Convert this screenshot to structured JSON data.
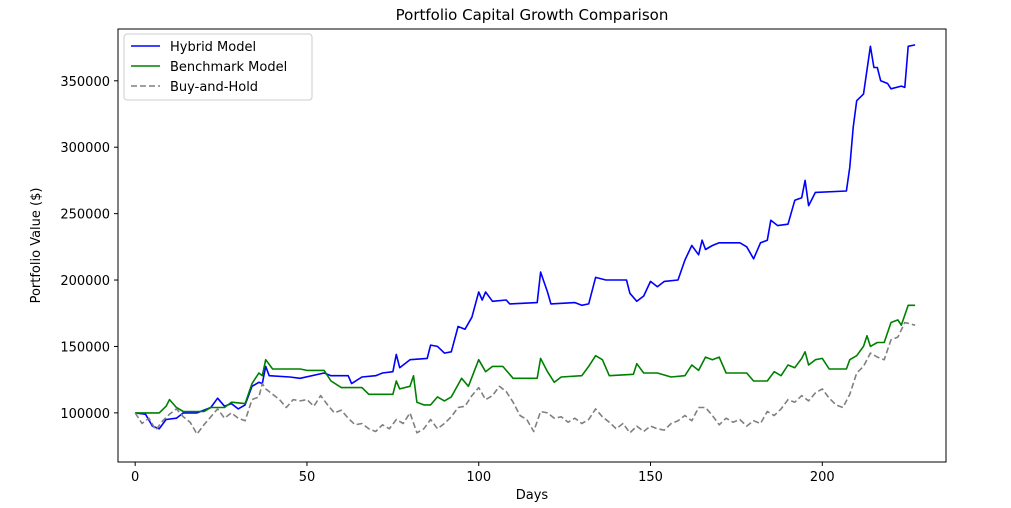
{
  "chart_data": {
    "type": "line",
    "title": "Portfolio Capital Growth Comparison",
    "xlabel": "Days",
    "ylabel": "Portfolio Value ($)",
    "xlim": [
      -5,
      236
    ],
    "ylim": [
      63000,
      389000
    ],
    "xticks": [
      0,
      50,
      100,
      150,
      200
    ],
    "yticks": [
      100000,
      150000,
      200000,
      250000,
      300000,
      350000
    ],
    "legend_position": "top-left",
    "grid": false,
    "series": [
      {
        "name": "Hybrid Model",
        "color": "#0000ff",
        "dash": "solid",
        "points": [
          [
            0,
            100000
          ],
          [
            3,
            99000
          ],
          [
            5,
            90000
          ],
          [
            7,
            88000
          ],
          [
            9,
            95000
          ],
          [
            12,
            96000
          ],
          [
            14,
            100000
          ],
          [
            18,
            100000
          ],
          [
            22,
            104000
          ],
          [
            24,
            111000
          ],
          [
            26,
            105000
          ],
          [
            28,
            107000
          ],
          [
            30,
            103000
          ],
          [
            32,
            106000
          ],
          [
            34,
            120000
          ],
          [
            36,
            123000
          ],
          [
            37,
            122000
          ],
          [
            38,
            135000
          ],
          [
            39,
            128000
          ],
          [
            45,
            127000
          ],
          [
            48,
            126000
          ],
          [
            55,
            130000
          ],
          [
            57,
            128000
          ],
          [
            62,
            128000
          ],
          [
            63,
            122000
          ],
          [
            66,
            127000
          ],
          [
            70,
            128000
          ],
          [
            72,
            130000
          ],
          [
            75,
            131000
          ],
          [
            76,
            144000
          ],
          [
            77,
            134000
          ],
          [
            80,
            140000
          ],
          [
            85,
            141000
          ],
          [
            86,
            151000
          ],
          [
            88,
            150000
          ],
          [
            90,
            145000
          ],
          [
            92,
            146000
          ],
          [
            94,
            165000
          ],
          [
            96,
            163000
          ],
          [
            98,
            172000
          ],
          [
            100,
            191000
          ],
          [
            101,
            185000
          ],
          [
            102,
            191000
          ],
          [
            104,
            184000
          ],
          [
            108,
            185000
          ],
          [
            109,
            182000
          ],
          [
            117,
            183000
          ],
          [
            118,
            206000
          ],
          [
            120,
            191000
          ],
          [
            121,
            182000
          ],
          [
            128,
            183000
          ],
          [
            130,
            181000
          ],
          [
            132,
            182000
          ],
          [
            134,
            202000
          ],
          [
            137,
            200000
          ],
          [
            143,
            200000
          ],
          [
            144,
            190000
          ],
          [
            146,
            184000
          ],
          [
            148,
            188000
          ],
          [
            150,
            199000
          ],
          [
            152,
            195000
          ],
          [
            154,
            199000
          ],
          [
            158,
            200000
          ],
          [
            160,
            215000
          ],
          [
            162,
            226000
          ],
          [
            164,
            219000
          ],
          [
            165,
            230000
          ],
          [
            166,
            223000
          ],
          [
            168,
            226000
          ],
          [
            170,
            228000
          ],
          [
            176,
            228000
          ],
          [
            178,
            225000
          ],
          [
            180,
            216000
          ],
          [
            182,
            228000
          ],
          [
            184,
            230000
          ],
          [
            185,
            245000
          ],
          [
            187,
            241000
          ],
          [
            190,
            242000
          ],
          [
            192,
            260000
          ],
          [
            194,
            262000
          ],
          [
            195,
            275000
          ],
          [
            196,
            256000
          ],
          [
            198,
            266000
          ],
          [
            207,
            267000
          ],
          [
            208,
            285000
          ],
          [
            209,
            315000
          ],
          [
            210,
            335000
          ],
          [
            212,
            340000
          ],
          [
            214,
            376000
          ],
          [
            215,
            360000
          ],
          [
            216,
            360000
          ],
          [
            217,
            350000
          ],
          [
            219,
            348000
          ],
          [
            220,
            344000
          ],
          [
            223,
            346000
          ],
          [
            224,
            345000
          ],
          [
            225,
            376000
          ],
          [
            227,
            377000
          ]
        ]
      },
      {
        "name": "Benchmark Model",
        "color": "#008000",
        "dash": "solid",
        "points": [
          [
            0,
            100000
          ],
          [
            5,
            100000
          ],
          [
            7,
            100000
          ],
          [
            9,
            105000
          ],
          [
            10,
            110000
          ],
          [
            12,
            104000
          ],
          [
            14,
            101000
          ],
          [
            20,
            101000
          ],
          [
            22,
            104000
          ],
          [
            26,
            104000
          ],
          [
            28,
            108000
          ],
          [
            32,
            107000
          ],
          [
            34,
            122000
          ],
          [
            36,
            130000
          ],
          [
            37,
            128000
          ],
          [
            38,
            140000
          ],
          [
            40,
            133000
          ],
          [
            48,
            133000
          ],
          [
            50,
            132000
          ],
          [
            55,
            132000
          ],
          [
            57,
            124000
          ],
          [
            60,
            119000
          ],
          [
            66,
            119000
          ],
          [
            68,
            114000
          ],
          [
            75,
            114000
          ],
          [
            76,
            124000
          ],
          [
            77,
            118000
          ],
          [
            80,
            120000
          ],
          [
            81,
            128000
          ],
          [
            82,
            108000
          ],
          [
            84,
            106000
          ],
          [
            86,
            106000
          ],
          [
            88,
            112000
          ],
          [
            90,
            109000
          ],
          [
            92,
            112000
          ],
          [
            95,
            126000
          ],
          [
            97,
            120000
          ],
          [
            100,
            140000
          ],
          [
            102,
            131000
          ],
          [
            104,
            135000
          ],
          [
            107,
            135000
          ],
          [
            110,
            126000
          ],
          [
            117,
            126000
          ],
          [
            118,
            141000
          ],
          [
            120,
            131000
          ],
          [
            122,
            123000
          ],
          [
            124,
            127000
          ],
          [
            130,
            128000
          ],
          [
            132,
            135000
          ],
          [
            134,
            143000
          ],
          [
            136,
            140000
          ],
          [
            138,
            128000
          ],
          [
            145,
            129000
          ],
          [
            146,
            137000
          ],
          [
            148,
            130000
          ],
          [
            152,
            130000
          ],
          [
            156,
            127000
          ],
          [
            160,
            128000
          ],
          [
            162,
            136000
          ],
          [
            164,
            132000
          ],
          [
            166,
            142000
          ],
          [
            168,
            140000
          ],
          [
            170,
            142000
          ],
          [
            172,
            130000
          ],
          [
            178,
            130000
          ],
          [
            180,
            124000
          ],
          [
            184,
            124000
          ],
          [
            186,
            131000
          ],
          [
            188,
            128000
          ],
          [
            190,
            136000
          ],
          [
            192,
            134000
          ],
          [
            194,
            141000
          ],
          [
            195,
            146000
          ],
          [
            196,
            136000
          ],
          [
            198,
            140000
          ],
          [
            200,
            141000
          ],
          [
            202,
            133000
          ],
          [
            207,
            133000
          ],
          [
            208,
            140000
          ],
          [
            210,
            143000
          ],
          [
            212,
            150000
          ],
          [
            213,
            158000
          ],
          [
            214,
            150000
          ],
          [
            216,
            153000
          ],
          [
            218,
            153000
          ],
          [
            220,
            168000
          ],
          [
            222,
            170000
          ],
          [
            223,
            166000
          ],
          [
            225,
            181000
          ],
          [
            227,
            181000
          ]
        ]
      },
      {
        "name": "Buy-and-Hold",
        "color": "#808080",
        "dash": "dashed",
        "points": [
          [
            0,
            100000
          ],
          [
            2,
            92000
          ],
          [
            4,
            96000
          ],
          [
            6,
            87000
          ],
          [
            8,
            94000
          ],
          [
            10,
            99000
          ],
          [
            12,
            103000
          ],
          [
            14,
            97000
          ],
          [
            16,
            93000
          ],
          [
            18,
            84000
          ],
          [
            20,
            91000
          ],
          [
            22,
            97000
          ],
          [
            24,
            103000
          ],
          [
            26,
            96000
          ],
          [
            28,
            100000
          ],
          [
            30,
            96000
          ],
          [
            32,
            94000
          ],
          [
            34,
            110000
          ],
          [
            36,
            112000
          ],
          [
            37,
            122000
          ],
          [
            38,
            118000
          ],
          [
            40,
            114000
          ],
          [
            42,
            110000
          ],
          [
            44,
            104000
          ],
          [
            46,
            110000
          ],
          [
            48,
            109000
          ],
          [
            50,
            110000
          ],
          [
            52,
            105000
          ],
          [
            54,
            113000
          ],
          [
            56,
            106000
          ],
          [
            58,
            100000
          ],
          [
            60,
            102000
          ],
          [
            62,
            96000
          ],
          [
            64,
            91000
          ],
          [
            66,
            92000
          ],
          [
            68,
            88000
          ],
          [
            70,
            86000
          ],
          [
            72,
            91000
          ],
          [
            74,
            88000
          ],
          [
            76,
            95000
          ],
          [
            78,
            92000
          ],
          [
            80,
            100000
          ],
          [
            82,
            85000
          ],
          [
            84,
            88000
          ],
          [
            86,
            95000
          ],
          [
            88,
            88000
          ],
          [
            90,
            92000
          ],
          [
            92,
            97000
          ],
          [
            94,
            104000
          ],
          [
            96,
            105000
          ],
          [
            98,
            113000
          ],
          [
            100,
            119000
          ],
          [
            102,
            110000
          ],
          [
            104,
            113000
          ],
          [
            106,
            120000
          ],
          [
            108,
            116000
          ],
          [
            110,
            108000
          ],
          [
            112,
            98000
          ],
          [
            114,
            95000
          ],
          [
            116,
            86000
          ],
          [
            118,
            101000
          ],
          [
            120,
            100000
          ],
          [
            122,
            96000
          ],
          [
            124,
            97000
          ],
          [
            126,
            93000
          ],
          [
            128,
            96000
          ],
          [
            130,
            92000
          ],
          [
            132,
            95000
          ],
          [
            134,
            103000
          ],
          [
            136,
            97000
          ],
          [
            138,
            93000
          ],
          [
            140,
            88000
          ],
          [
            142,
            92000
          ],
          [
            144,
            85000
          ],
          [
            146,
            90000
          ],
          [
            148,
            86000
          ],
          [
            150,
            90000
          ],
          [
            152,
            88000
          ],
          [
            154,
            87000
          ],
          [
            156,
            92000
          ],
          [
            158,
            94000
          ],
          [
            160,
            98000
          ],
          [
            162,
            94000
          ],
          [
            164,
            104000
          ],
          [
            166,
            104000
          ],
          [
            168,
            98000
          ],
          [
            170,
            91000
          ],
          [
            172,
            96000
          ],
          [
            174,
            93000
          ],
          [
            176,
            95000
          ],
          [
            178,
            90000
          ],
          [
            180,
            94000
          ],
          [
            182,
            92000
          ],
          [
            184,
            101000
          ],
          [
            186,
            98000
          ],
          [
            188,
            103000
          ],
          [
            190,
            110000
          ],
          [
            192,
            108000
          ],
          [
            194,
            113000
          ],
          [
            196,
            109000
          ],
          [
            198,
            115000
          ],
          [
            200,
            118000
          ],
          [
            202,
            111000
          ],
          [
            204,
            106000
          ],
          [
            206,
            104000
          ],
          [
            208,
            114000
          ],
          [
            210,
            130000
          ],
          [
            212,
            135000
          ],
          [
            214,
            145000
          ],
          [
            216,
            142000
          ],
          [
            218,
            140000
          ],
          [
            220,
            155000
          ],
          [
            222,
            157000
          ],
          [
            224,
            168000
          ],
          [
            227,
            166000
          ]
        ]
      }
    ]
  }
}
